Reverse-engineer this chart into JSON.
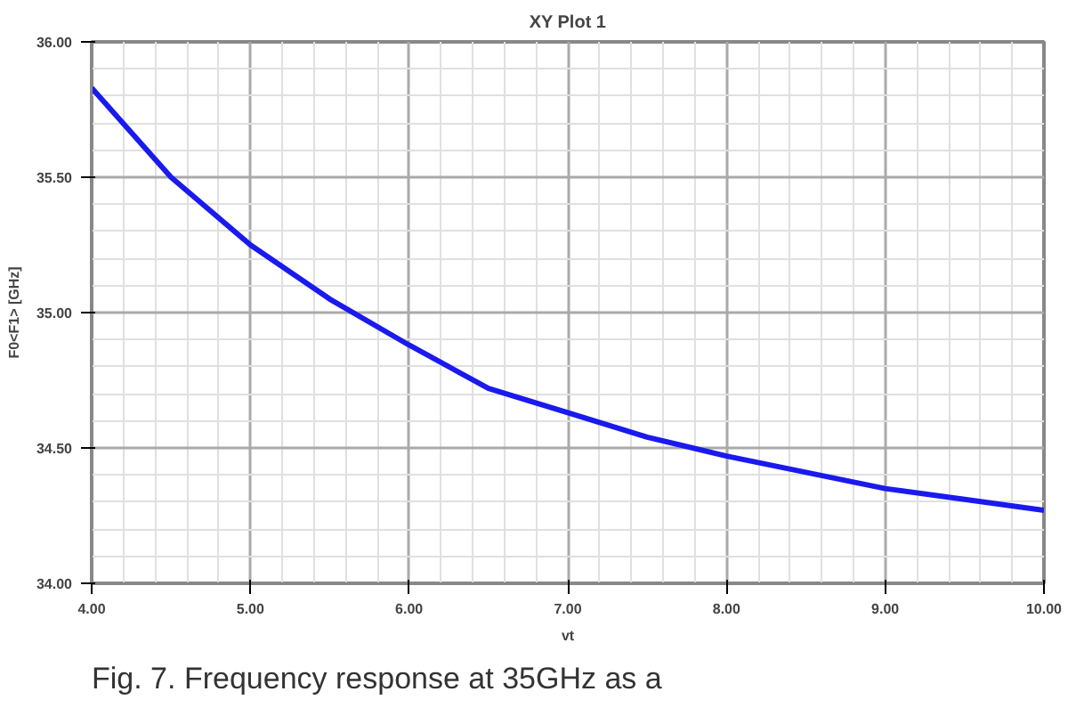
{
  "chart_data": {
    "type": "line",
    "title": "XY Plot 1",
    "xlabel": "vt",
    "ylabel": "F0<F1> [GHz]",
    "x": [
      4,
      4.5,
      5,
      5.5,
      6,
      6.5,
      7,
      7.5,
      8,
      8.5,
      9,
      9.5,
      10
    ],
    "series": [
      {
        "color": "#1a1aee",
        "values": [
          35.83,
          35.5,
          35.25,
          35.05,
          34.88,
          34.72,
          34.63,
          34.54,
          34.47,
          34.41,
          34.35,
          34.31,
          34.27
        ]
      }
    ],
    "xlim": [
      4,
      10
    ],
    "ylim": [
      34,
      36
    ],
    "xticks": [
      {
        "value": 4,
        "label": "4.00"
      },
      {
        "value": 5,
        "label": "5.00"
      },
      {
        "value": 6,
        "label": "6.00"
      },
      {
        "value": 7,
        "label": "7.00"
      },
      {
        "value": 8,
        "label": "8.00"
      },
      {
        "value": 9,
        "label": "9.00"
      },
      {
        "value": 10,
        "label": "10.00"
      }
    ],
    "yticks": [
      {
        "value": 34,
        "label": "34.00"
      },
      {
        "value": 34.5,
        "label": "34.50"
      },
      {
        "value": 35,
        "label": "35.00"
      },
      {
        "value": 35.5,
        "label": "35.50"
      },
      {
        "value": 36,
        "label": "36.00"
      }
    ],
    "grid": true,
    "marker": "none",
    "line_style": "solid",
    "annotations": [
      "Fig. 7.  Frequency response at 35GHz as a"
    ]
  }
}
